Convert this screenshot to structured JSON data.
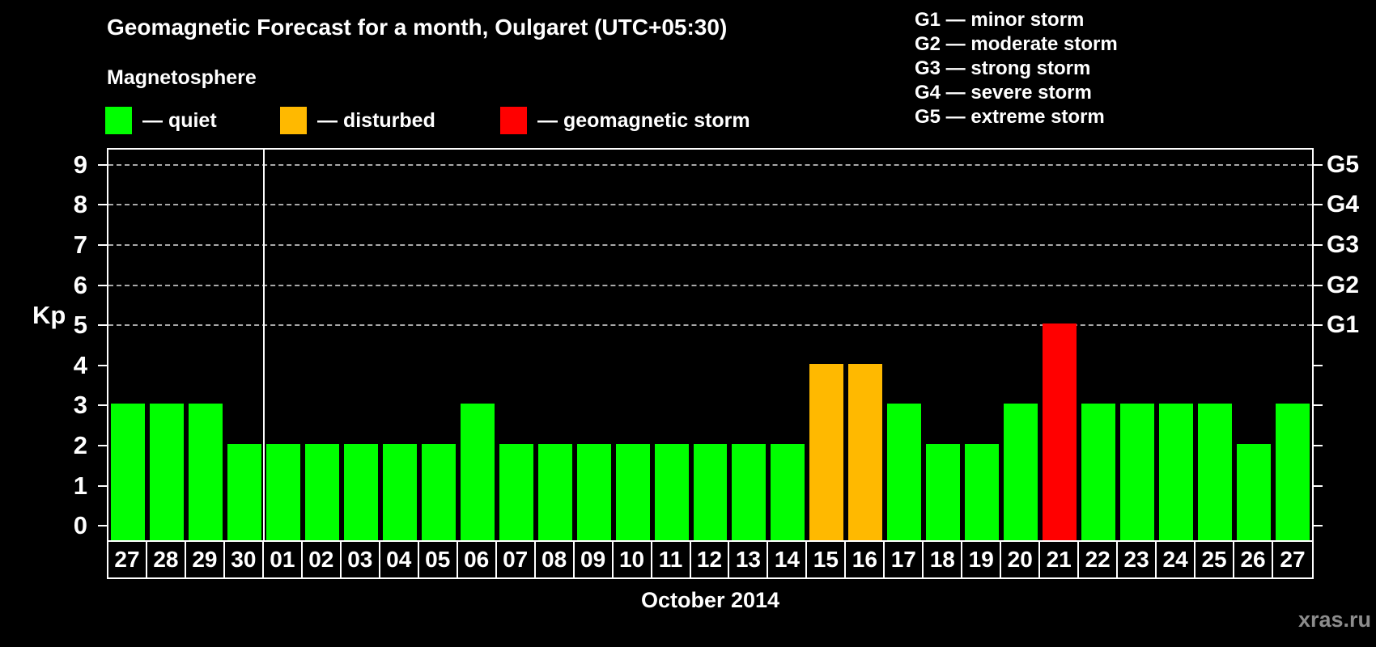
{
  "header": {
    "title": "Geomagnetic Forecast for a month, Oulgaret (UTC+05:30)",
    "subtitle": "Magnetosphere"
  },
  "legend": {
    "items": [
      {
        "key": "quiet",
        "label": "— quiet",
        "color": "#00ff00"
      },
      {
        "key": "disturbed",
        "label": "— disturbed",
        "color": "#ffb900"
      },
      {
        "key": "storm",
        "label": "— geomagnetic storm",
        "color": "#ff0000"
      }
    ]
  },
  "g_scale_legend": {
    "items": [
      "G1 — minor storm",
      "G2 — moderate storm",
      "G3 — strong storm",
      "G4 — severe storm",
      "G5 — extreme storm"
    ]
  },
  "chart_data": {
    "type": "bar",
    "title": "Geomagnetic Forecast for a month, Oulgaret (UTC+05:30)",
    "ylabel": "Kp",
    "xlabel": "October 2014",
    "categories": [
      "27",
      "28",
      "29",
      "30",
      "01",
      "02",
      "03",
      "04",
      "05",
      "06",
      "07",
      "08",
      "09",
      "10",
      "11",
      "12",
      "13",
      "14",
      "15",
      "16",
      "17",
      "18",
      "19",
      "20",
      "21",
      "22",
      "23",
      "24",
      "25",
      "26",
      "27"
    ],
    "values": [
      3,
      3,
      3,
      2,
      2,
      2,
      2,
      2,
      2,
      3,
      2,
      2,
      2,
      2,
      2,
      2,
      2,
      2,
      4,
      4,
      3,
      2,
      2,
      3,
      5,
      3,
      3,
      3,
      3,
      2,
      3
    ],
    "statuses": [
      "quiet",
      "quiet",
      "quiet",
      "quiet",
      "quiet",
      "quiet",
      "quiet",
      "quiet",
      "quiet",
      "quiet",
      "quiet",
      "quiet",
      "quiet",
      "quiet",
      "quiet",
      "quiet",
      "quiet",
      "quiet",
      "disturbed",
      "disturbed",
      "quiet",
      "quiet",
      "quiet",
      "quiet",
      "storm",
      "quiet",
      "quiet",
      "quiet",
      "quiet",
      "quiet",
      "quiet"
    ],
    "status_colors": {
      "quiet": "#00ff00",
      "disturbed": "#ffb900",
      "storm": "#ff0000"
    },
    "y_ticks": [
      0,
      1,
      2,
      3,
      4,
      5,
      6,
      7,
      8,
      9
    ],
    "gridlines_at": [
      5,
      6,
      7,
      8,
      9
    ],
    "right_axis_labels": [
      {
        "value": 5,
        "label": "G1"
      },
      {
        "value": 6,
        "label": "G2"
      },
      {
        "value": 7,
        "label": "G3"
      },
      {
        "value": 8,
        "label": "G4"
      },
      {
        "value": 9,
        "label": "G5"
      }
    ],
    "month_separator_after_index": 3,
    "ylim": [
      -0.4,
      9.38
    ],
    "grid": "horizontal dashed at G-storm levels",
    "legend_position": "top-left"
  },
  "footer": {
    "x_axis_title": "October 2014",
    "watermark": "xras.ru"
  }
}
